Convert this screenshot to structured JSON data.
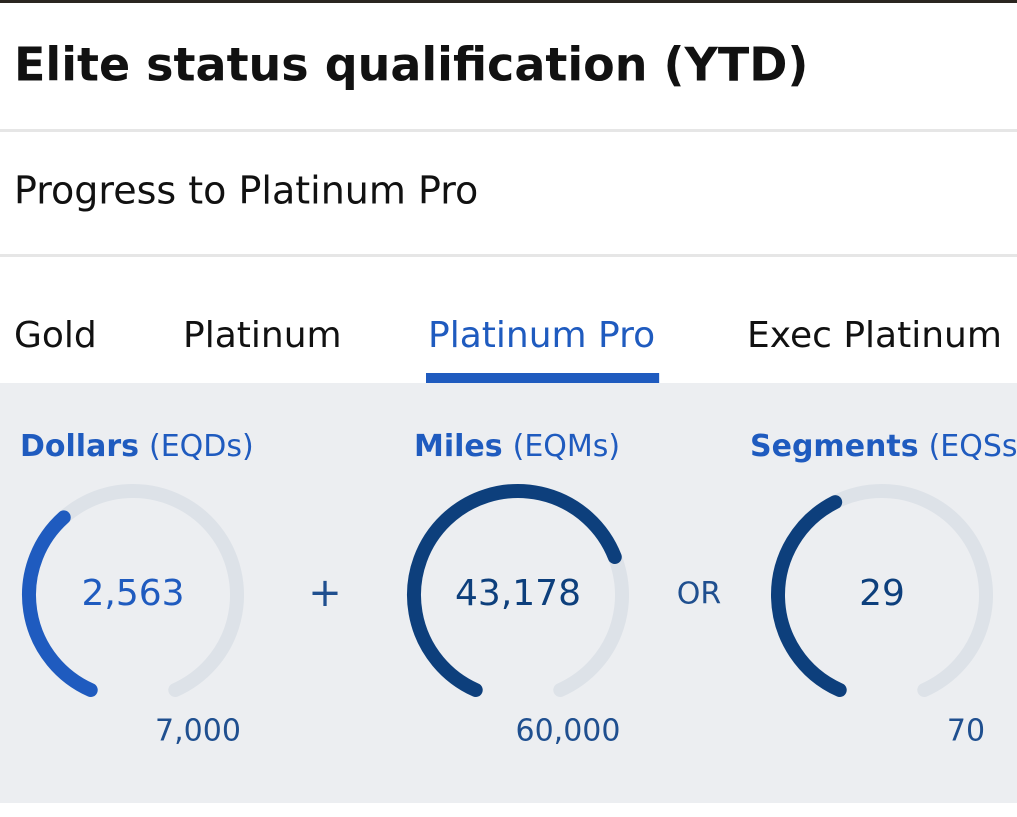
{
  "header": {
    "title": "Elite status qualification (YTD)",
    "subtitle": "Progress to Platinum Pro"
  },
  "tabs": [
    {
      "label": "Gold",
      "selected": false
    },
    {
      "label": "Platinum",
      "selected": false
    },
    {
      "label": "Platinum Pro",
      "selected": true
    },
    {
      "label": "Exec Platinum",
      "selected": false
    }
  ],
  "gauges": [
    {
      "name": "Dollars",
      "unit": "(EQDs)",
      "color": "#1f5bbf",
      "value": {
        "value": 2563,
        "label": "2,563"
      },
      "max": {
        "value": 7000,
        "label": "7,000"
      }
    },
    {
      "name": "Miles",
      "unit": "(EQMs)",
      "color": "#0d3f7c",
      "value": {
        "value": 43178,
        "label": "43,178"
      },
      "max": {
        "value": 60000,
        "label": "60,000"
      }
    },
    {
      "name": "Segments",
      "unit": "(EQSs)",
      "color": "#0d3f7c",
      "value": 29,
      "max": 70
    }
  ],
  "separators": [
    "+",
    "OR"
  ]
}
